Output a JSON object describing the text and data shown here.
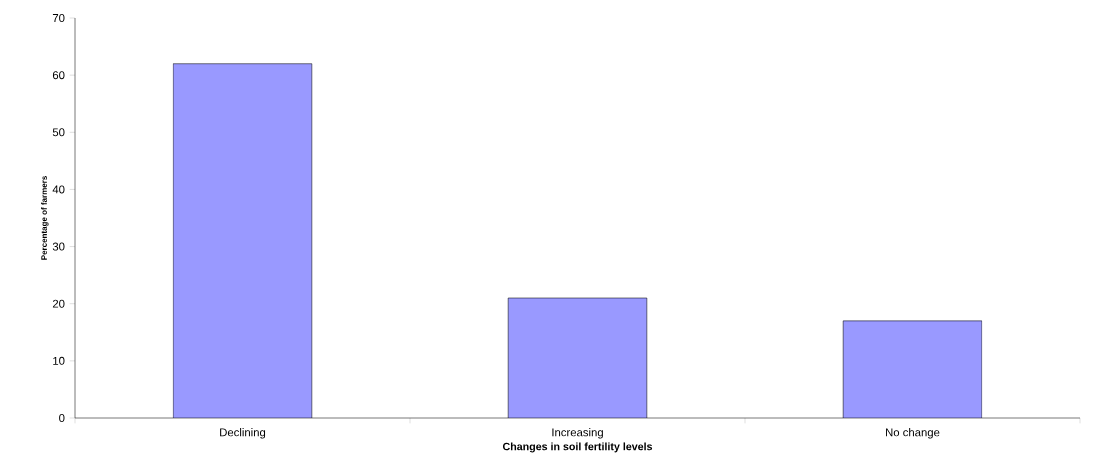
{
  "chart_data": {
    "type": "bar",
    "xlabel": "Changes in soil fertility levels",
    "ylabel": "Percentage of farmers",
    "categories": [
      "Declining",
      "Increasing",
      "No change"
    ],
    "values": [
      62,
      21,
      17
    ],
    "color": "#9999ff",
    "ylim": [
      0,
      70
    ],
    "yticks": [
      0,
      10,
      20,
      30,
      40,
      50,
      60,
      70
    ]
  }
}
